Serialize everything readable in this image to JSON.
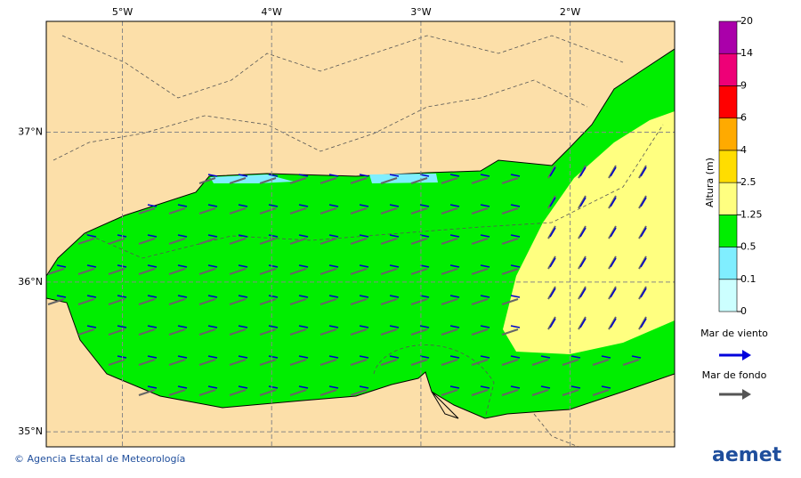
{
  "map": {
    "xlim": [
      -5.51,
      -1.3
    ],
    "ylim": [
      34.9,
      37.74
    ],
    "xticks": [
      {
        "value": -5,
        "label": "5°W"
      },
      {
        "value": -4,
        "label": "4°W"
      },
      {
        "value": -3,
        "label": "3°W"
      },
      {
        "value": -2,
        "label": "2°W"
      }
    ],
    "yticks": [
      {
        "value": 37,
        "label": "37°N"
      },
      {
        "value": 36,
        "label": "36°N"
      },
      {
        "value": 35,
        "label": "35°N"
      }
    ]
  },
  "colorbar": {
    "label": "Altura (m)",
    "levels": [
      0,
      0.1,
      0.5,
      1.25,
      2.5,
      4,
      6,
      9,
      14,
      20
    ],
    "colors": [
      "#ccffff",
      "#80eeff",
      "#00ee00",
      "#ffff80",
      "#ffdd00",
      "#ffaa00",
      "#ff0000",
      "#ee0077",
      "#aa00aa"
    ]
  },
  "legend": {
    "wind_sea": "Mar de viento",
    "swell": "Mar de fondo"
  },
  "footer": {
    "credit": "© Agencia Estatal de Meteorología",
    "logo": "aemet"
  }
}
